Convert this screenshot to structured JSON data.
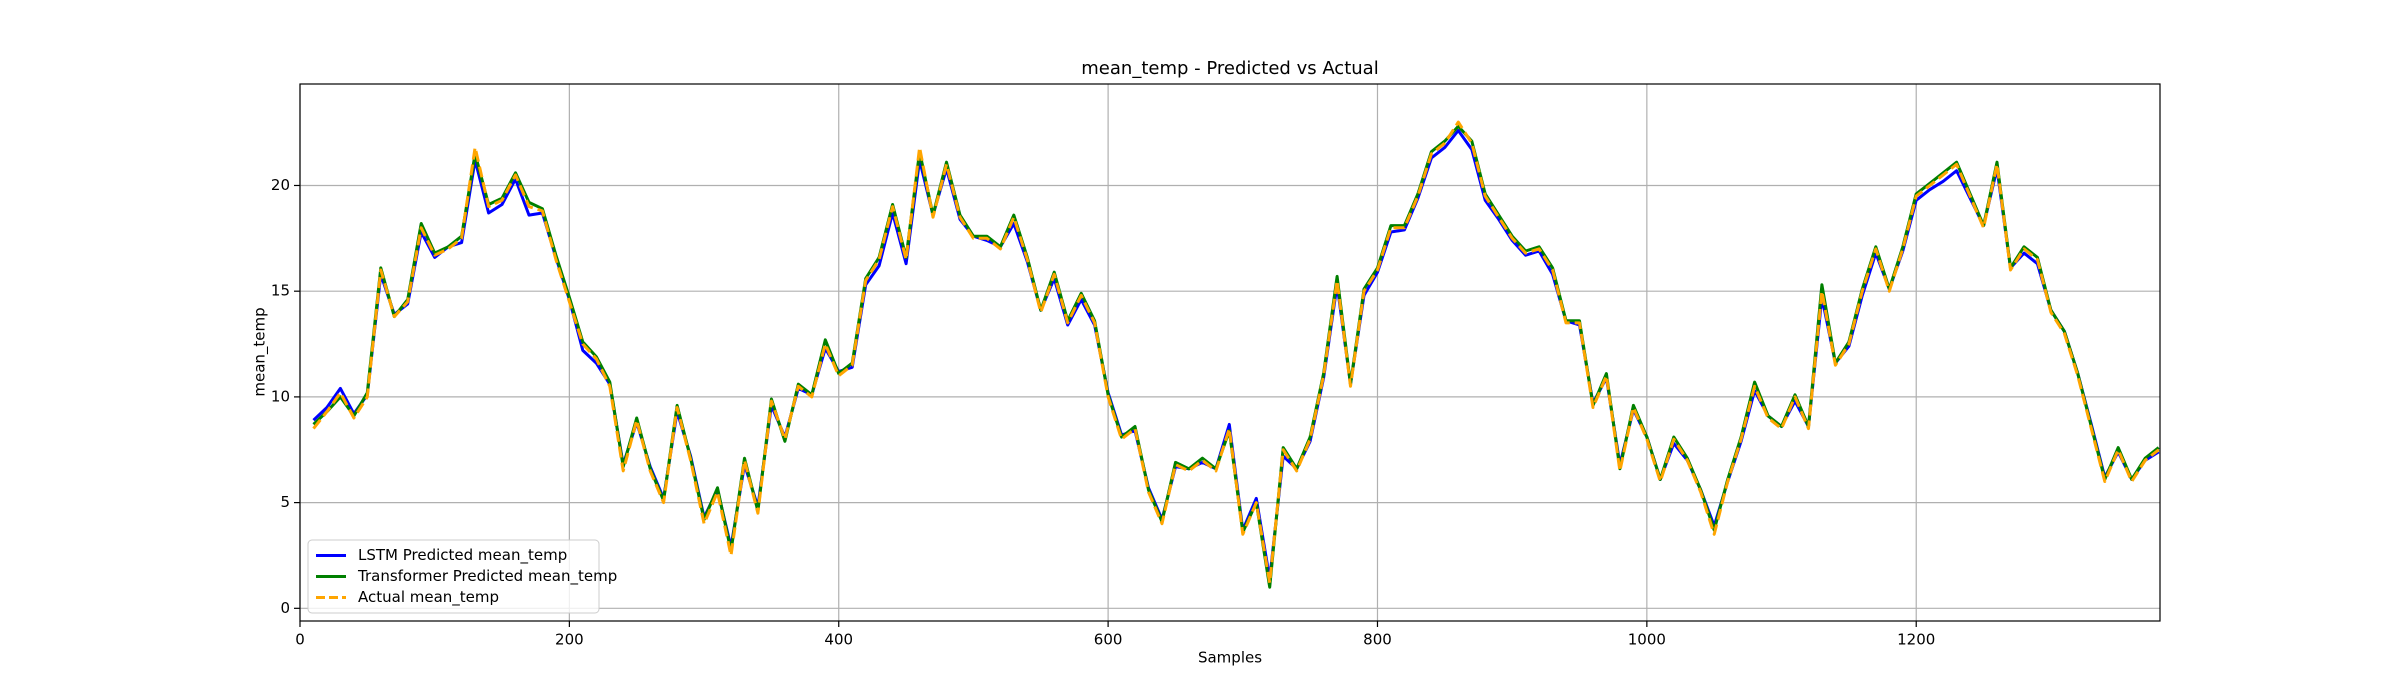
{
  "chart_data": {
    "type": "line",
    "title": "mean_temp - Predicted vs Actual",
    "xlabel": "Samples",
    "ylabel": "mean_temp",
    "x": [
      10,
      20,
      30,
      40,
      50,
      60,
      70,
      80,
      90,
      100,
      110,
      120,
      130,
      140,
      150,
      160,
      170,
      180,
      190,
      200,
      210,
      220,
      230,
      240,
      250,
      260,
      270,
      280,
      290,
      300,
      310,
      320,
      330,
      340,
      350,
      360,
      370,
      380,
      390,
      400,
      410,
      420,
      430,
      440,
      450,
      460,
      470,
      480,
      490,
      500,
      510,
      520,
      530,
      540,
      550,
      560,
      570,
      580,
      590,
      600,
      610,
      620,
      630,
      640,
      650,
      660,
      670,
      680,
      690,
      700,
      710,
      720,
      730,
      740,
      750,
      760,
      770,
      780,
      790,
      800,
      810,
      820,
      830,
      840,
      850,
      860,
      870,
      880,
      890,
      900,
      910,
      920,
      930,
      940,
      950,
      960,
      970,
      980,
      990,
      1000,
      1010,
      1020,
      1030,
      1040,
      1050,
      1060,
      1070,
      1080,
      1090,
      1100,
      1110,
      1120,
      1130,
      1140,
      1150,
      1160,
      1170,
      1180,
      1190,
      1200,
      1210,
      1220,
      1230,
      1240,
      1250,
      1260,
      1270,
      1280,
      1290,
      1300,
      1310,
      1320,
      1330,
      1340,
      1350,
      1360,
      1370,
      1380
    ],
    "series": [
      {
        "name": "LSTM Predicted mean_temp",
        "color": "#0000ff",
        "dashed": false,
        "values": [
          8.9,
          9.5,
          10.4,
          9.2,
          10.1,
          15.8,
          13.9,
          14.4,
          17.8,
          16.6,
          17.1,
          17.3,
          21.2,
          18.7,
          19.1,
          20.3,
          18.6,
          18.7,
          16.6,
          14.6,
          12.2,
          11.6,
          10.6,
          6.8,
          8.8,
          6.7,
          5.2,
          9.3,
          7.2,
          4.3,
          5.6,
          2.9,
          6.8,
          4.8,
          9.6,
          8.1,
          10.4,
          10.1,
          12.3,
          11.2,
          11.4,
          15.3,
          16.2,
          18.7,
          16.3,
          21.2,
          18.6,
          20.8,
          18.4,
          17.6,
          17.4,
          17.1,
          18.2,
          16.4,
          14.1,
          15.6,
          13.4,
          14.6,
          13.4,
          10.2,
          8.2,
          8.4,
          5.7,
          4.2,
          6.7,
          6.6,
          6.9,
          6.6,
          8.7,
          3.7,
          5.2,
          1.4,
          7.2,
          6.6,
          7.9,
          10.9,
          15.3,
          10.6,
          14.8,
          15.9,
          17.8,
          17.9,
          19.4,
          21.3,
          21.8,
          22.6,
          21.7,
          19.3,
          18.4,
          17.4,
          16.7,
          16.9,
          15.8,
          13.6,
          13.4,
          9.7,
          10.9,
          6.8,
          9.4,
          8.1,
          6.1,
          7.8,
          7.0,
          5.6,
          3.9,
          6.0,
          7.9,
          10.3,
          9.1,
          8.6,
          9.8,
          8.6,
          14.7,
          11.6,
          12.4,
          14.8,
          16.8,
          15.1,
          16.9,
          19.3,
          19.8,
          20.2,
          20.7,
          19.4,
          18.1,
          20.8,
          16.1,
          16.8,
          16.3,
          14.1,
          13.1,
          11.1,
          8.7,
          6.2,
          7.4,
          6.1,
          7.0,
          7.4
        ]
      },
      {
        "name": "Transformer Predicted mean_temp",
        "color": "#008000",
        "dashed": false,
        "values": [
          8.7,
          9.3,
          10.0,
          9.1,
          10.2,
          16.1,
          13.8,
          14.6,
          18.2,
          16.8,
          17.1,
          17.6,
          21.5,
          19.1,
          19.4,
          20.6,
          19.2,
          18.9,
          16.7,
          14.7,
          12.6,
          11.9,
          10.7,
          6.7,
          9.0,
          6.6,
          5.1,
          9.6,
          7.1,
          4.2,
          5.7,
          2.7,
          7.1,
          4.6,
          9.9,
          7.9,
          10.6,
          10.1,
          12.7,
          11.1,
          11.6,
          15.6,
          16.6,
          19.1,
          16.6,
          21.6,
          18.6,
          21.1,
          18.6,
          17.6,
          17.6,
          17.1,
          18.6,
          16.6,
          14.1,
          15.9,
          13.6,
          14.9,
          13.6,
          10.1,
          8.1,
          8.6,
          5.6,
          4.1,
          6.9,
          6.6,
          7.1,
          6.6,
          8.4,
          3.6,
          5.0,
          1.0,
          7.6,
          6.6,
          8.1,
          11.1,
          15.7,
          10.6,
          15.1,
          16.1,
          18.1,
          18.1,
          19.6,
          21.6,
          22.1,
          22.8,
          22.1,
          19.6,
          18.6,
          17.6,
          16.9,
          17.1,
          16.1,
          13.6,
          13.6,
          9.6,
          11.1,
          6.6,
          9.6,
          8.1,
          6.1,
          8.1,
          7.1,
          5.6,
          3.7,
          6.1,
          8.1,
          10.7,
          9.1,
          8.6,
          10.1,
          8.6,
          15.3,
          11.6,
          12.6,
          15.1,
          17.1,
          15.1,
          17.1,
          19.6,
          20.1,
          20.6,
          21.1,
          19.6,
          18.1,
          21.1,
          16.1,
          17.1,
          16.6,
          14.1,
          13.1,
          11.1,
          8.6,
          6.1,
          7.6,
          6.1,
          7.1,
          7.6
        ]
      },
      {
        "name": "Actual mean_temp",
        "color": "#ffa500",
        "dashed": true,
        "values": [
          8.5,
          9.3,
          10.2,
          9.0,
          10.0,
          16.0,
          13.8,
          14.5,
          18.0,
          16.7,
          17.0,
          17.5,
          21.8,
          19.0,
          19.3,
          20.5,
          19.0,
          18.8,
          16.5,
          14.5,
          12.5,
          11.8,
          10.5,
          6.5,
          8.9,
          6.5,
          5.0,
          9.5,
          7.0,
          4.0,
          5.5,
          2.5,
          7.0,
          4.5,
          9.8,
          8.0,
          10.5,
          10.0,
          12.5,
          11.0,
          11.5,
          15.5,
          16.5,
          19.0,
          16.5,
          21.8,
          18.5,
          21.0,
          18.5,
          17.5,
          17.5,
          17.0,
          18.5,
          16.5,
          14.0,
          15.8,
          13.5,
          14.8,
          13.5,
          10.0,
          8.0,
          8.5,
          5.5,
          4.0,
          6.8,
          6.5,
          7.0,
          6.5,
          8.5,
          3.5,
          5.0,
          1.2,
          7.5,
          6.5,
          8.0,
          11.0,
          15.5,
          10.5,
          15.0,
          16.0,
          18.0,
          18.0,
          19.5,
          21.5,
          22.0,
          23.0,
          22.0,
          19.5,
          18.5,
          17.5,
          16.8,
          17.0,
          16.0,
          13.5,
          13.5,
          9.5,
          11.0,
          6.5,
          9.5,
          8.0,
          6.0,
          8.0,
          7.0,
          5.5,
          3.5,
          6.0,
          8.0,
          10.5,
          9.0,
          8.5,
          10.0,
          8.5,
          15.0,
          11.5,
          12.5,
          15.0,
          17.0,
          15.0,
          17.0,
          19.5,
          20.0,
          20.5,
          21.0,
          19.5,
          18.0,
          21.0,
          16.0,
          17.0,
          16.5,
          14.0,
          13.0,
          11.0,
          8.5,
          6.0,
          7.5,
          6.0,
          7.0,
          7.5
        ]
      }
    ],
    "xlim": [
      0,
      1381
    ],
    "ylim": [
      -0.6,
      24.8
    ],
    "xticks": [
      0,
      200,
      400,
      600,
      800,
      1000,
      1200
    ],
    "yticks": [
      0,
      5,
      10,
      15,
      20
    ],
    "grid": true,
    "legend": "lower left"
  }
}
